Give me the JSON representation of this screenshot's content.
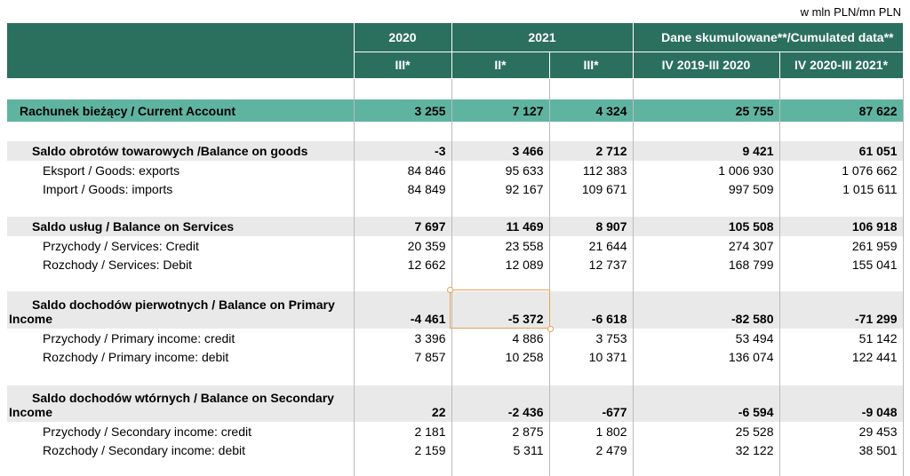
{
  "unit_note": "w mln PLN/mn PLN",
  "header": {
    "years": [
      "2020",
      "2021",
      "Dane skumulowane**/Cumulated data**"
    ],
    "periods": [
      "III*",
      "II*",
      "III*",
      "IV 2019-III 2020",
      "IV 2020-III 2021*"
    ]
  },
  "table": {
    "rows": [
      [
        "Rachunek bieżący / Current Account",
        "3 255",
        "7 127",
        "4 324",
        "25 755",
        "87 622"
      ],
      [
        "Saldo obrotów towarowych /Balance on goods",
        "-3",
        "3 466",
        "2 712",
        "9 421",
        "61 051"
      ],
      [
        "Eksport / Goods: exports",
        "84 846",
        "95 633",
        "112 383",
        "1 006 930",
        "1 076 662"
      ],
      [
        "Import / Goods: imports",
        "84 849",
        "92 167",
        "109 671",
        "997 509",
        "1 015 611"
      ],
      [
        "Saldo usług / Balance on Services",
        "7 697",
        "11 469",
        "8 907",
        "105 508",
        "106 918"
      ],
      [
        "Przychody / Services: Credit",
        "20 359",
        "23 558",
        "21 644",
        "274 307",
        "261 959"
      ],
      [
        "Rozchody / Services: Debit",
        "12 662",
        "12 089",
        "12 737",
        "168 799",
        "155 041"
      ],
      [
        "Saldo dochodów pierwotnych / Balance on Primary Income",
        "-4 461",
        "-5 372",
        "-6 618",
        "-82 580",
        "-71 299"
      ],
      [
        "Przychody / Primary income: credit",
        "3 396",
        "4 886",
        "3 753",
        "53 494",
        "51 142"
      ],
      [
        "Rozchody / Primary income: debit",
        "7 857",
        "10 258",
        "10 371",
        "136 074",
        "122 441"
      ],
      [
        "Saldo dochodów wtórnych / Balance on Secondary Income",
        "22",
        "-2 436",
        "-677",
        "-6 594",
        "-9 048"
      ],
      [
        "Przychody / Secondary income: credit",
        "2 181",
        "2 875",
        "1 802",
        "25 528",
        "29 453"
      ],
      [
        "Rozchody / Secondary income: debit",
        "2 159",
        "5 311",
        "2 479",
        "32 122",
        "38 501"
      ]
    ]
  }
}
